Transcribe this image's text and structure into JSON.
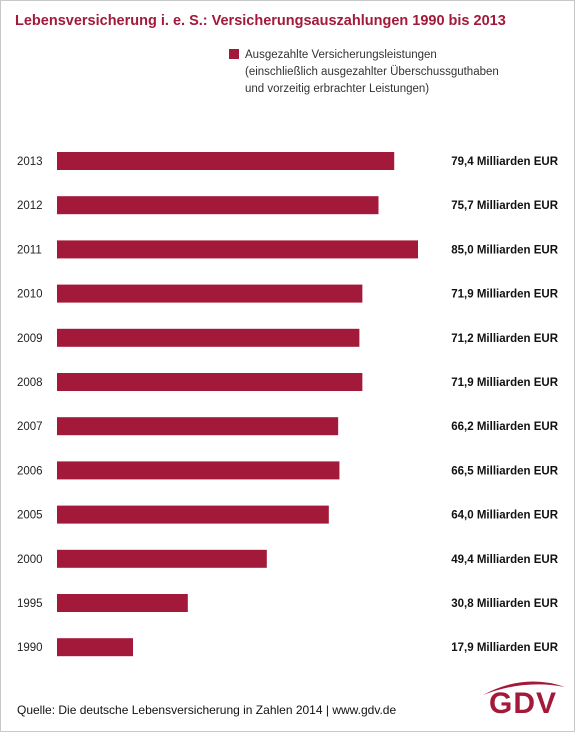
{
  "chart_data": {
    "type": "bar",
    "orientation": "horizontal",
    "title": "Lebensversicherung i. e. S.: Versicherungsauszahlungen 1990 bis 2013",
    "legend": [
      "Ausgezahlte Versicherungsleistungen\n(einschließlich ausgezahlter Überschussguthaben\nund vorzeitig erbrachter Leistungen)"
    ],
    "categories": [
      "2013",
      "2012",
      "2011",
      "2010",
      "2009",
      "2008",
      "2007",
      "2006",
      "2005",
      "2000",
      "1995",
      "1990"
    ],
    "series": [
      {
        "values": [
          79.4,
          75.7,
          85.0,
          71.9,
          71.2,
          71.9,
          66.2,
          66.5,
          64.0,
          49.4,
          30.8,
          17.9
        ]
      }
    ],
    "value_labels": [
      "79,4 Milliarden EUR",
      "75,7 Milliarden EUR",
      "85,0 Milliarden EUR",
      "71,9 Milliarden EUR",
      "71,2 Milliarden EUR",
      "71,9 Milliarden EUR",
      "66,2 Milliarden EUR",
      "66,5 Milliarden EUR",
      "64,0 Milliarden EUR",
      "49,4 Milliarden EUR",
      "30,8 Milliarden EUR",
      "17,9 Milliarden EUR"
    ],
    "xlim": [
      0,
      85
    ],
    "grid": false,
    "legend_position": "top-right"
  },
  "colors": {
    "bar": "#a3193a",
    "title": "#a3193a"
  },
  "source": "Quelle: Die deutsche Lebensversicherung in Zahlen 2014 | www.gdv.de",
  "logo": {
    "text": "GDV"
  }
}
